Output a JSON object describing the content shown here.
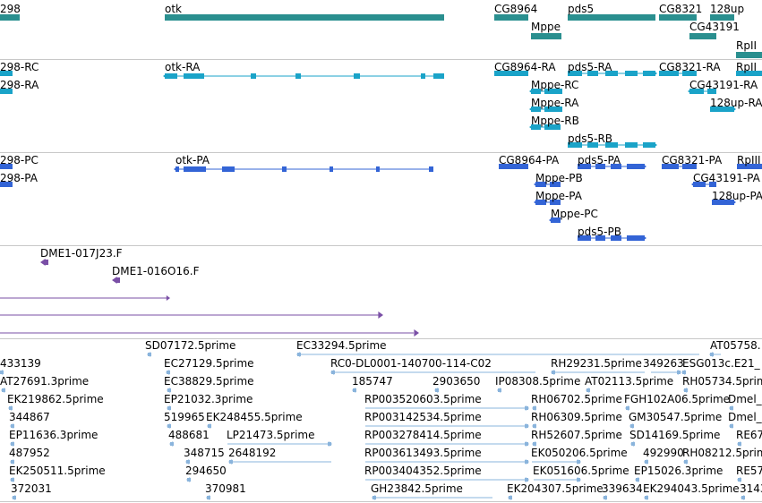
{
  "colors": {
    "gene": "#2a8f8f",
    "transcript_rna": "#1aa3c8",
    "protein": "#3364d6",
    "clone": "#7a4fa6",
    "est": "#8ab4dc",
    "separator": "#c8c8c8"
  },
  "tracks": {
    "genes": {
      "labels": [
        "298",
        "otk",
        "CG8964",
        "pds5",
        "CG8321",
        "128up",
        "Mppe",
        "CG43191",
        "RpII"
      ]
    },
    "transcripts": {
      "labels": [
        "298-RC",
        "298-RA",
        "otk-RA",
        "CG8964-RA",
        "pds5-RA",
        "CG8321-RA",
        "RpII",
        "Mppe-RC",
        "CG43191-RA",
        "Mppe-RA",
        "128up-RA",
        "Mppe-RB",
        "pds5-RB"
      ]
    },
    "proteins": {
      "labels": [
        "298-PC",
        "298-PA",
        "otk-PA",
        "CG8964-PA",
        "pds5-PA",
        "CG8321-PA",
        "RpIII",
        "Mppe-PB",
        "CG43191-PA",
        "Mppe-PA",
        "128up-PA",
        "Mppe-PC",
        "pds5-PB"
      ]
    },
    "clones": {
      "labels": [
        "DME1-017J23.F",
        "DME1-016O16.F"
      ]
    },
    "ests": {
      "labels": [
        "433139",
        "SD07172.5prime",
        "EC33294.5prime",
        "AT05758.",
        "AT27691.3prime",
        "EC27129.5prime",
        "RC0-DL0001-140700-114-C02",
        "RH29231.5prime",
        "349263",
        "ESG013c.E21_",
        "EK219862.5prime",
        "EC38829.5prime",
        "185747",
        "2903650",
        "IP08308.5prime",
        "AT02113.5prime",
        "RH05734.5prime",
        "344867",
        "EP21032.3prime",
        "RP003520603.5prime",
        "RH06702.5prime",
        "FGH102A06.5prime",
        "Dmel_",
        "EP11636.3prime",
        "519965",
        "EK248455.5prime",
        "RP003142534.5prime",
        "RH06309.5prime",
        "GM30547.5prime",
        "Dmel_n",
        "487952",
        "488681",
        "LP21473.5prime",
        "RP003278414.5prime",
        "RH52607.5prime",
        "SD14169.5prime",
        "RE67",
        "EK250511.5prime",
        "348715",
        "2648192",
        "RP003613493.5prime",
        "EK050206.5prime",
        "492990",
        "RH08212.5prime",
        "372031",
        "294650",
        "RP003404352.5prime",
        "EK051606.5prime",
        "EP15026.3prime",
        "RE57",
        "370981",
        "GH23842.5prime",
        "EK204307.5prime",
        "339634",
        "EK294043.5prime",
        "3143"
      ]
    }
  }
}
